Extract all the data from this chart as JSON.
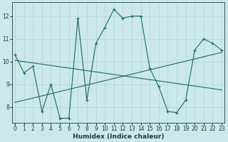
{
  "xlabel": "Humidex (Indice chaleur)",
  "bg_color": "#cce8e8",
  "line_color": "#1a6b60",
  "grid_color": "#b0d4d4",
  "series1_x": [
    0,
    1,
    2,
    3,
    4,
    5,
    6,
    7,
    8,
    9,
    10,
    11,
    12,
    13,
    14,
    15,
    16,
    17,
    18,
    19,
    20,
    21,
    22,
    23
  ],
  "series1_y": [
    10.3,
    9.5,
    9.8,
    7.8,
    9.0,
    7.5,
    7.5,
    11.9,
    8.3,
    10.8,
    11.5,
    12.3,
    11.9,
    12.0,
    12.0,
    9.7,
    8.9,
    7.8,
    7.75,
    8.3,
    10.5,
    11.0,
    10.8,
    10.5
  ],
  "trend1_x": [
    0,
    23
  ],
  "trend1_y": [
    10.05,
    8.75
  ],
  "trend2_x": [
    0,
    23
  ],
  "trend2_y": [
    8.2,
    10.4
  ],
  "xlim": [
    -0.3,
    23.3
  ],
  "ylim": [
    7.3,
    12.6
  ],
  "yticks": [
    8,
    9,
    10,
    11,
    12
  ],
  "xticks": [
    0,
    1,
    2,
    3,
    4,
    5,
    6,
    7,
    8,
    9,
    10,
    11,
    12,
    13,
    14,
    15,
    16,
    17,
    18,
    19,
    20,
    21,
    22,
    23
  ],
  "figsize": [
    3.2,
    2.0
  ],
  "dpi": 100,
  "xlabel_fontsize": 6.5,
  "tick_fontsize": 5.5,
  "linewidth": 0.8,
  "markersize": 3.0
}
